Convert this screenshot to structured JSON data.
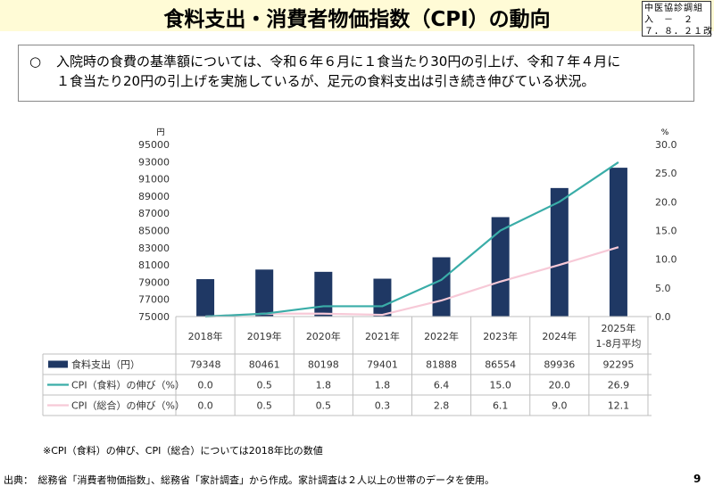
{
  "header": {
    "title": "食料支出・消費者物価指数（CPI）の動向",
    "ref_lines": [
      "中医協診調組",
      "入　－　２",
      "７．８．２１改"
    ]
  },
  "summary": {
    "bullet": "○",
    "line1": "入院時の食費の基準額については、令和６年６月に１食当たり30円の引上げ、令和７年４月に",
    "line2": "１食当たり20円の引上げを実施しているが、足元の食料支出は引き続き伸びている状況。"
  },
  "chart_data": {
    "type": "bar+line",
    "categories": [
      "2018年",
      "2019年",
      "2020年",
      "2021年",
      "2022年",
      "2023年",
      "2024年",
      "2025年\n1-8月平均"
    ],
    "series": [
      {
        "name": "食料支出（円）",
        "type": "bar",
        "axis": "left",
        "color": "#1f3864",
        "values": [
          79348,
          80461,
          80198,
          79401,
          81888,
          86554,
          89936,
          92295
        ],
        "table_values": [
          "79348",
          "80461",
          "80198",
          "79401",
          "81888",
          "86554",
          "89936",
          "92295"
        ]
      },
      {
        "name": "CPI（食料）の伸び（%）",
        "type": "line",
        "axis": "right",
        "color": "#3aada8",
        "values": [
          0.0,
          0.5,
          1.8,
          1.8,
          6.4,
          15.0,
          20.0,
          26.9
        ],
        "table_values": [
          "0.0",
          "0.5",
          "1.8",
          "1.8",
          "6.4",
          "15.0",
          "20.0",
          "26.9"
        ]
      },
      {
        "name": "CPI（総合）の伸び（%）",
        "type": "line",
        "axis": "right",
        "color": "#f7c9d7",
        "values": [
          0.0,
          0.5,
          0.5,
          0.3,
          2.8,
          6.1,
          9.0,
          12.1
        ],
        "table_values": [
          "0.0",
          "0.5",
          "0.5",
          "0.3",
          "2.8",
          "6.1",
          "9.0",
          "12.1"
        ]
      }
    ],
    "left_axis": {
      "unit": "円",
      "min": 75000,
      "max": 95000,
      "ticks": [
        "75000",
        "77000",
        "79000",
        "81000",
        "83000",
        "85000",
        "87000",
        "89000",
        "91000",
        "93000",
        "95000"
      ]
    },
    "right_axis": {
      "unit": "%",
      "min": 0,
      "max": 30,
      "ticks": [
        "0.0",
        "5.0",
        "10.0",
        "15.0",
        "20.0",
        "25.0",
        "30.0"
      ]
    },
    "grid": false,
    "legend": "data-table"
  },
  "footnote": "※CPI（食料）の伸び、CPI（総合）については2018年比の数値",
  "source": "出典：　総務省「消費者物価指数」、総務省「家計調査」から作成。家計調査は２人以上の世帯のデータを使用。",
  "page_number": "9"
}
